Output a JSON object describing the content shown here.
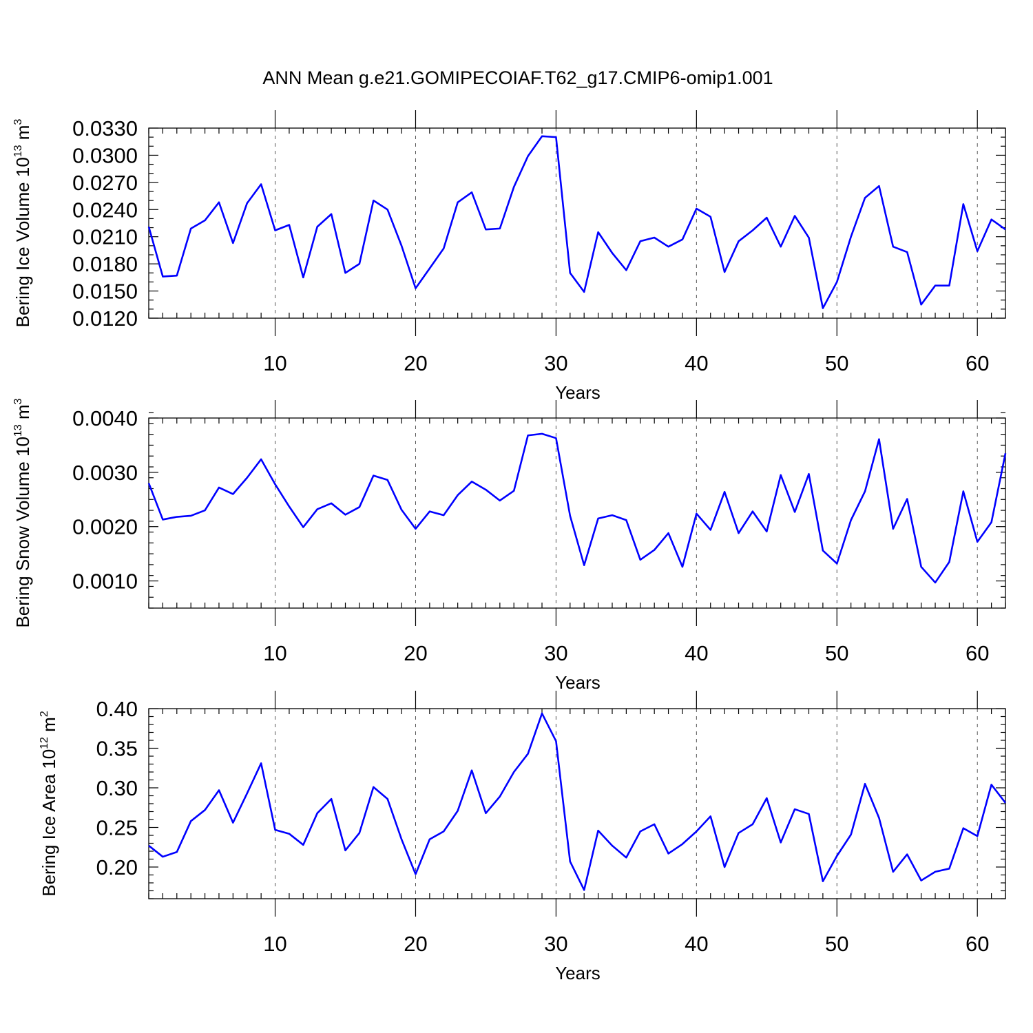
{
  "figure_title": "ANN Mean g.e21.GOMIPECOIAF.T62_g17.CMIP6-omip1.001",
  "colors": {
    "series": "#0000ff",
    "axes": "#000000",
    "background": "#ffffff"
  },
  "chart_data": [
    {
      "type": "line",
      "title": "ANN Mean g.e21.GOMIPECOIAF.T62_g17.CMIP6-omip1.001",
      "xlabel": "Years",
      "ylabel_main": "Bering Ice Volume 10",
      "ylabel_exp": "13",
      "ylabel_unit": "m",
      "ylabel_unit_exp": "3",
      "xlim": [
        1,
        62
      ],
      "ylim": [
        0.012,
        0.033
      ],
      "xticks": [
        10,
        20,
        30,
        40,
        50,
        60
      ],
      "xtick_labels": [
        "10",
        "20",
        "30",
        "40",
        "50",
        "60"
      ],
      "yticks": [
        0.012,
        0.015,
        0.018,
        0.021,
        0.024,
        0.027,
        0.03,
        0.033
      ],
      "ytick_labels": [
        "0.0120",
        "0.0150",
        "0.0180",
        "0.0210",
        "0.0240",
        "0.0270",
        "0.0300",
        "0.0330"
      ],
      "y_minor_step": 0.001,
      "grid_x": true,
      "series": [
        {
          "name": "Bering Ice Volume",
          "x": [
            1,
            2,
            3,
            4,
            5,
            6,
            7,
            8,
            9,
            10,
            11,
            12,
            13,
            14,
            15,
            16,
            17,
            18,
            19,
            20,
            21,
            22,
            23,
            24,
            25,
            26,
            27,
            28,
            29,
            30,
            31,
            32,
            33,
            34,
            35,
            36,
            37,
            38,
            39,
            40,
            41,
            42,
            43,
            44,
            45,
            46,
            47,
            48,
            49,
            50,
            51,
            52,
            53,
            54,
            55,
            56,
            57,
            58,
            59,
            60,
            61,
            62
          ],
          "values": [
            0.0221,
            0.0166,
            0.0167,
            0.0219,
            0.0228,
            0.0248,
            0.0203,
            0.0247,
            0.0268,
            0.0217,
            0.0223,
            0.0165,
            0.0221,
            0.0235,
            0.017,
            0.018,
            0.025,
            0.024,
            0.02,
            0.0153,
            0.0175,
            0.0197,
            0.0248,
            0.0259,
            0.0218,
            0.0219,
            0.0265,
            0.0299,
            0.0321,
            0.032,
            0.017,
            0.0149,
            0.0215,
            0.0192,
            0.0173,
            0.0205,
            0.0209,
            0.0199,
            0.0207,
            0.0241,
            0.0232,
            0.0171,
            0.0205,
            0.0217,
            0.0231,
            0.0199,
            0.0233,
            0.0209,
            0.0131,
            0.016,
            0.021,
            0.0253,
            0.0266,
            0.0199,
            0.0193,
            0.0135,
            0.0156,
            0.0156,
            0.0246,
            0.0194,
            0.0229,
            0.0218
          ]
        }
      ]
    },
    {
      "type": "line",
      "title": "",
      "xlabel": "Years",
      "ylabel_main": "Bering Snow Volume 10",
      "ylabel_exp": "13",
      "ylabel_unit": "m",
      "ylabel_unit_exp": "3",
      "xlim": [
        1,
        62
      ],
      "ylim": [
        0.0005,
        0.004
      ],
      "xticks": [
        10,
        20,
        30,
        40,
        50,
        60
      ],
      "xtick_labels": [
        "10",
        "20",
        "30",
        "40",
        "50",
        "60"
      ],
      "yticks": [
        0.001,
        0.002,
        0.003,
        0.004
      ],
      "ytick_labels": [
        "0.0010",
        "0.0020",
        "0.0030",
        "0.0040"
      ],
      "y_minor_step": 0.0002,
      "grid_x": true,
      "series": [
        {
          "name": "Bering Snow Volume",
          "x": [
            1,
            2,
            3,
            4,
            5,
            6,
            7,
            8,
            9,
            10,
            11,
            12,
            13,
            14,
            15,
            16,
            17,
            18,
            19,
            20,
            21,
            22,
            23,
            24,
            25,
            26,
            27,
            28,
            29,
            30,
            31,
            32,
            33,
            34,
            35,
            36,
            37,
            38,
            39,
            40,
            41,
            42,
            43,
            44,
            45,
            46,
            47,
            48,
            49,
            50,
            51,
            52,
            53,
            54,
            55,
            56,
            57,
            58,
            59,
            60,
            61,
            62
          ],
          "values": [
            0.0028,
            0.00213,
            0.00218,
            0.0022,
            0.0023,
            0.00272,
            0.0026,
            0.0029,
            0.00324,
            0.00278,
            0.00237,
            0.00199,
            0.00232,
            0.00243,
            0.00222,
            0.00236,
            0.00294,
            0.00286,
            0.00231,
            0.00196,
            0.00228,
            0.00221,
            0.00258,
            0.00283,
            0.00268,
            0.00248,
            0.00266,
            0.00368,
            0.00371,
            0.00363,
            0.0022,
            0.00129,
            0.00215,
            0.00221,
            0.00212,
            0.00139,
            0.00157,
            0.00188,
            0.00126,
            0.00224,
            0.00194,
            0.00264,
            0.00188,
            0.00228,
            0.00191,
            0.00295,
            0.00227,
            0.00297,
            0.00156,
            0.00132,
            0.00212,
            0.00265,
            0.00361,
            0.00196,
            0.00251,
            0.00126,
            0.00097,
            0.00135,
            0.00265,
            0.00172,
            0.00208,
            0.00335
          ]
        }
      ]
    },
    {
      "type": "line",
      "title": "",
      "xlabel": "Years",
      "ylabel_main": "Bering Ice Area 10",
      "ylabel_exp": "12",
      "ylabel_unit": "m",
      "ylabel_unit_exp": "2",
      "xlim": [
        1,
        62
      ],
      "ylim": [
        0.16,
        0.4
      ],
      "xticks": [
        10,
        20,
        30,
        40,
        50,
        60
      ],
      "xtick_labels": [
        "10",
        "20",
        "30",
        "40",
        "50",
        "60"
      ],
      "yticks": [
        0.2,
        0.25,
        0.3,
        0.35,
        0.4
      ],
      "ytick_labels": [
        "0.20",
        "0.25",
        "0.30",
        "0.35",
        "0.40"
      ],
      "y_minor_step": 0.01,
      "grid_x": true,
      "series": [
        {
          "name": "Bering Ice Area",
          "x": [
            1,
            2,
            3,
            4,
            5,
            6,
            7,
            8,
            9,
            10,
            11,
            12,
            13,
            14,
            15,
            16,
            17,
            18,
            19,
            20,
            21,
            22,
            23,
            24,
            25,
            26,
            27,
            28,
            29,
            30,
            31,
            32,
            33,
            34,
            35,
            36,
            37,
            38,
            39,
            40,
            41,
            42,
            43,
            44,
            45,
            46,
            47,
            48,
            49,
            50,
            51,
            52,
            53,
            54,
            55,
            56,
            57,
            58,
            59,
            60,
            61,
            62
          ],
          "values": [
            0.227,
            0.213,
            0.219,
            0.258,
            0.272,
            0.297,
            0.256,
            0.293,
            0.331,
            0.247,
            0.242,
            0.228,
            0.268,
            0.286,
            0.221,
            0.243,
            0.301,
            0.286,
            0.235,
            0.191,
            0.235,
            0.245,
            0.271,
            0.322,
            0.268,
            0.289,
            0.32,
            0.343,
            0.394,
            0.359,
            0.207,
            0.171,
            0.246,
            0.227,
            0.212,
            0.245,
            0.254,
            0.217,
            0.229,
            0.245,
            0.264,
            0.2,
            0.243,
            0.254,
            0.287,
            0.231,
            0.273,
            0.267,
            0.182,
            0.214,
            0.241,
            0.305,
            0.262,
            0.194,
            0.216,
            0.183,
            0.194,
            0.198,
            0.249,
            0.239,
            0.304,
            0.281
          ]
        }
      ]
    }
  ]
}
